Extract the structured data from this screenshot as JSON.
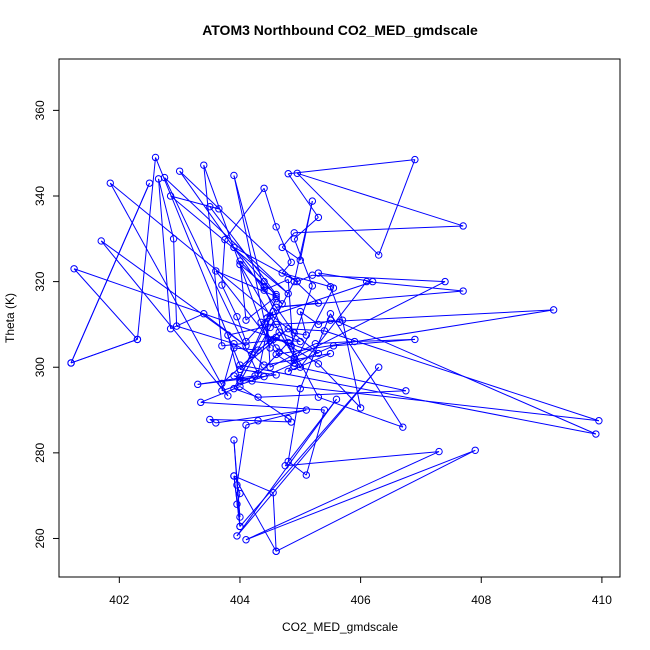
{
  "chart_data": {
    "type": "scatter",
    "style": "points-connected-by-lines",
    "title": "ATOM3 Northbound CO2_MED_gmdscale",
    "xlabel": "CO2_MED_gmdscale",
    "ylabel": "Theta (K)",
    "xlim": [
      401,
      410.3
    ],
    "ylim": [
      251,
      372
    ],
    "x_ticks": [
      402,
      404,
      406,
      408,
      410
    ],
    "x_tick_labels": [
      "402",
      "404",
      "406",
      "408",
      "410"
    ],
    "y_ticks": [
      260,
      280,
      300,
      320,
      340,
      360
    ],
    "y_tick_labels": [
      "260",
      "280",
      "300",
      "320",
      "340",
      "360"
    ],
    "grid": false,
    "legend": "none",
    "color": "#0000ff",
    "points": [
      [
        404.6,
        257.0
      ],
      [
        407.9,
        280.6
      ],
      [
        404.1,
        259.7
      ],
      [
        407.3,
        280.3
      ],
      [
        404.75,
        277.0
      ],
      [
        405.6,
        292.5
      ],
      [
        403.95,
        260.6
      ],
      [
        406.3,
        300.0
      ],
      [
        404.0,
        262.8
      ],
      [
        403.9,
        274.6
      ],
      [
        404.55,
        270.7
      ],
      [
        404.6,
        257.0
      ],
      [
        403.9,
        274.6
      ],
      [
        404.0,
        262.8
      ],
      [
        403.9,
        283.0
      ],
      [
        404.0,
        265.0
      ],
      [
        403.95,
        268.0
      ],
      [
        404.0,
        270.5
      ],
      [
        403.95,
        272.5
      ],
      [
        404.1,
        286.5
      ],
      [
        405.1,
        290.0
      ],
      [
        403.6,
        287.0
      ],
      [
        403.5,
        287.8
      ],
      [
        404.3,
        287.5
      ],
      [
        404.85,
        287.2
      ],
      [
        404.8,
        288.0
      ],
      [
        404.0,
        295.5
      ],
      [
        403.35,
        291.8
      ],
      [
        405.4,
        290.0
      ],
      [
        405.1,
        274.8
      ],
      [
        404.8,
        278.0
      ],
      [
        405.0,
        295.0
      ],
      [
        405.5,
        312.5
      ],
      [
        406.7,
        286.0
      ],
      [
        405.3,
        293.0
      ],
      [
        404.85,
        305.0
      ],
      [
        405.2,
        319.0
      ],
      [
        404.9,
        330.0
      ],
      [
        405.3,
        335.0
      ],
      [
        404.8,
        345.2
      ],
      [
        406.9,
        348.5
      ],
      [
        406.3,
        326.2
      ],
      [
        404.95,
        345.3
      ],
      [
        407.7,
        333.0
      ],
      [
        404.9,
        331.4
      ],
      [
        404.7,
        328.0
      ],
      [
        405.0,
        325.0
      ],
      [
        405.2,
        338.8
      ],
      [
        404.9,
        320.0
      ],
      [
        404.5,
        309.3
      ],
      [
        404.0,
        296.6
      ],
      [
        404.25,
        298.0
      ],
      [
        403.3,
        296.0
      ],
      [
        404.6,
        298.2
      ],
      [
        404.0,
        299.5
      ],
      [
        404.8,
        309.0
      ],
      [
        405.4,
        308.5
      ],
      [
        409.95,
        287.5
      ],
      [
        404.0,
        297.0
      ],
      [
        403.8,
        307.5
      ],
      [
        404.6,
        310.0
      ],
      [
        409.2,
        313.4
      ],
      [
        404.6,
        303.0
      ],
      [
        404.9,
        300.2
      ],
      [
        406.75,
        294.5
      ],
      [
        404.3,
        293.0
      ],
      [
        403.9,
        295.0
      ],
      [
        404.55,
        313.0
      ],
      [
        404.1,
        306.0
      ],
      [
        403.95,
        311.8
      ],
      [
        403.7,
        319.2
      ],
      [
        403.75,
        329.8
      ],
      [
        404.4,
        341.8
      ],
      [
        404.6,
        332.8
      ],
      [
        404.85,
        324.5
      ],
      [
        404.7,
        322.0
      ],
      [
        405.5,
        318.8
      ],
      [
        405.7,
        311.0
      ],
      [
        406.0,
        290.5
      ],
      [
        405.3,
        300.8
      ],
      [
        404.6,
        307.0
      ],
      [
        404.3,
        304.0
      ],
      [
        403.9,
        304.5
      ],
      [
        403.7,
        294.5
      ],
      [
        404.4,
        297.8
      ],
      [
        405.55,
        305.0
      ],
      [
        406.9,
        306.5
      ],
      [
        405.9,
        306.0
      ],
      [
        405.25,
        305.5
      ],
      [
        404.5,
        300.0
      ],
      [
        404.45,
        311.5
      ],
      [
        404.6,
        316.0
      ],
      [
        404.7,
        314.8
      ],
      [
        404.4,
        320.0
      ],
      [
        403.9,
        328.0
      ],
      [
        404.95,
        320.0
      ],
      [
        405.2,
        321.5
      ],
      [
        407.4,
        320.0
      ],
      [
        404.9,
        302.2
      ],
      [
        404.4,
        318.8
      ],
      [
        404.0,
        324.8
      ],
      [
        404.1,
        311.0
      ],
      [
        404.6,
        316.5
      ],
      [
        403.6,
        322.5
      ],
      [
        404.5,
        306.2
      ],
      [
        403.7,
        305.0
      ],
      [
        403.4,
        347.2
      ],
      [
        404.5,
        304.5
      ],
      [
        403.9,
        344.8
      ],
      [
        404.4,
        318.0
      ],
      [
        404.8,
        320.5
      ],
      [
        404.9,
        301.0
      ],
      [
        405.55,
        318.5
      ],
      [
        405.3,
        322.0
      ],
      [
        406.2,
        320.0
      ],
      [
        404.5,
        312.0
      ],
      [
        404.3,
        298.5
      ],
      [
        402.75,
        344.3
      ],
      [
        404.8,
        317.2
      ],
      [
        402.85,
        340.0
      ],
      [
        403.65,
        337.0
      ],
      [
        403.5,
        337.5
      ],
      [
        404.6,
        317.0
      ],
      [
        404.0,
        324.0
      ],
      [
        405.0,
        300.0
      ],
      [
        406.1,
        320.0
      ],
      [
        407.7,
        317.8
      ],
      [
        404.6,
        314.0
      ],
      [
        405.3,
        315.0
      ],
      [
        403.0,
        345.8
      ],
      [
        404.9,
        308.0
      ],
      [
        405.1,
        307.5
      ],
      [
        405.0,
        313.0
      ],
      [
        405.3,
        310.0
      ],
      [
        405.5,
        311.0
      ],
      [
        405.65,
        310.5
      ],
      [
        409.9,
        284.4
      ],
      [
        404.0,
        300.5
      ],
      [
        402.6,
        349.0
      ],
      [
        402.3,
        306.5
      ],
      [
        401.2,
        301.0
      ],
      [
        402.5,
        343.0
      ],
      [
        401.2,
        301.0
      ],
      [
        402.3,
        306.5
      ],
      [
        401.25,
        323.0
      ],
      [
        405.3,
        303.2
      ],
      [
        401.85,
        343.0
      ],
      [
        403.8,
        293.3
      ],
      [
        401.7,
        329.5
      ],
      [
        404.1,
        305.0
      ],
      [
        403.4,
        312.5
      ],
      [
        402.85,
        309.0
      ],
      [
        402.65,
        344.0
      ],
      [
        402.9,
        330.0
      ],
      [
        402.95,
        309.6
      ],
      [
        403.9,
        305.5
      ],
      [
        404.2,
        303.0
      ],
      [
        404.4,
        300.5
      ],
      [
        405.5,
        303.2
      ],
      [
        404.8,
        299.0
      ],
      [
        404.9,
        301.8
      ],
      [
        404.6,
        304.5
      ],
      [
        404.35,
        310.5
      ],
      [
        404.45,
        311.5
      ],
      [
        404.0,
        297.5
      ],
      [
        403.9,
        298.0
      ],
      [
        404.2,
        296.8
      ],
      [
        404.65,
        303.5
      ],
      [
        404.8,
        305.8
      ],
      [
        404.55,
        306.5
      ],
      [
        405.0,
        306.0
      ],
      [
        404.65,
        308.2
      ],
      [
        403.7,
        296.2
      ]
    ]
  }
}
